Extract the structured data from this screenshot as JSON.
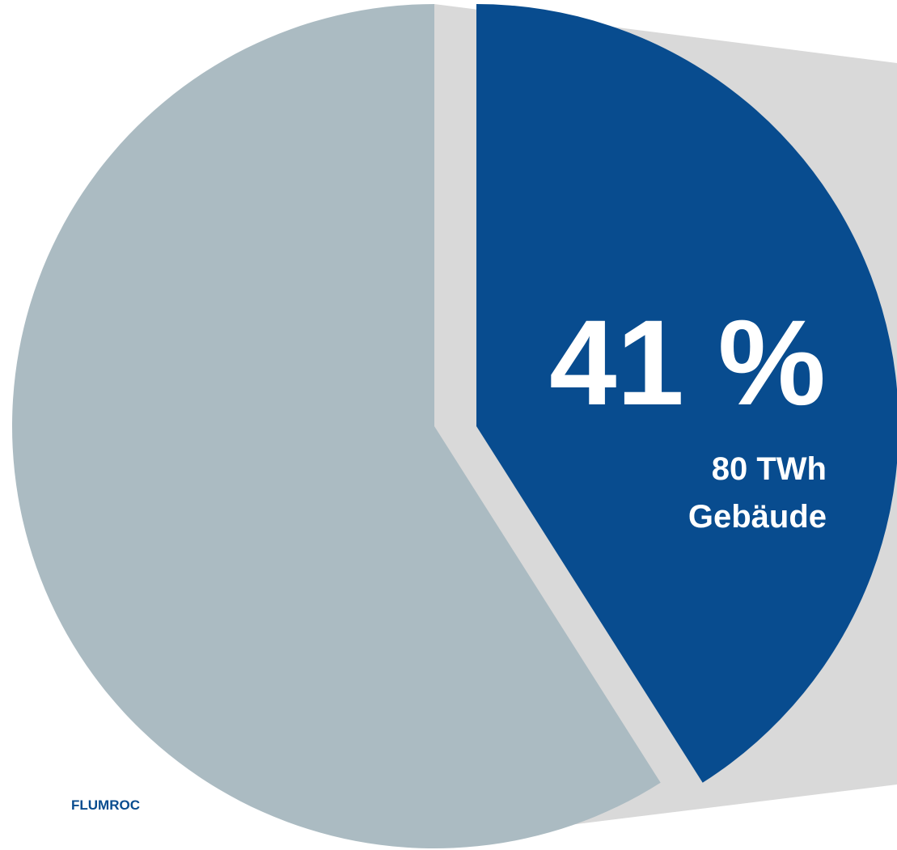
{
  "chart_data": {
    "type": "pie",
    "categories": [
      "Gebäude",
      null
    ],
    "values": [
      41,
      59
    ],
    "value_labels": [
      "41 %",
      null
    ],
    "sub_labels": [
      "80 TWh",
      null
    ],
    "colors": [
      "#084c8f",
      "#abbbc2"
    ],
    "exploded": [
      true,
      false
    ],
    "logo": "FLUMROC"
  }
}
